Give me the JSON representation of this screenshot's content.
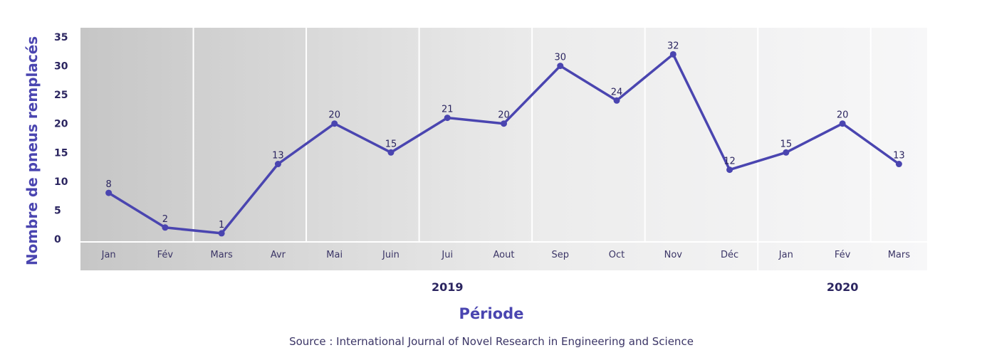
{
  "chart_data": {
    "type": "line",
    "title": "",
    "xlabel": "Période",
    "ylabel": "Nombre de pneus remplacés",
    "source": "Source : International Journal of Novel Research in Engineering and Science",
    "categories": [
      "Jan",
      "Fév",
      "Mars",
      "Avr",
      "Mai",
      "Juin",
      "Jui",
      "Aout",
      "Sep",
      "Oct",
      "Nov",
      "Déc",
      "Jan",
      "Fév",
      "Mars"
    ],
    "year_groups": [
      {
        "label": "2019",
        "months": 12
      },
      {
        "label": "2020",
        "months": 3
      }
    ],
    "series": [
      {
        "name": "Nombre de pneus remplacés",
        "color": "#4a45b0",
        "values": [
          8,
          2,
          1,
          13,
          20,
          15,
          21,
          20,
          30,
          24,
          32,
          12,
          15,
          20,
          13
        ]
      }
    ],
    "yticks": [
      0,
      5,
      10,
      15,
      20,
      25,
      30,
      35
    ],
    "ylim": [
      0,
      35
    ],
    "data_labels": true,
    "grid": false,
    "legend": "none",
    "colors": {
      "line": "#4a45b0",
      "text_dark": "#2b2560",
      "title_accent": "#4a45b0",
      "bg_start": "#c8c8c8",
      "bg_end": "#f7f7f8"
    }
  }
}
